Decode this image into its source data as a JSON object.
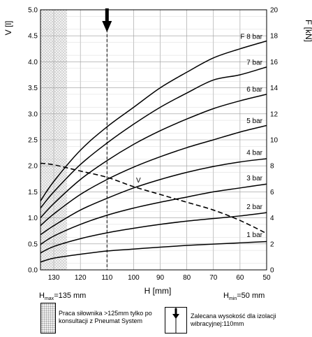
{
  "chart_data": {
    "type": "line",
    "xlabel": "H [mm]",
    "ylabel_left": "V [l]",
    "ylabel_right": "F [kN]",
    "x_reversed": true,
    "xlim": [
      50,
      135
    ],
    "ylim_left": [
      0,
      5.0
    ],
    "ylim_right": [
      0,
      20
    ],
    "x_ticks": [
      130,
      120,
      110,
      100,
      90,
      80,
      70,
      60,
      50
    ],
    "y_left_ticks": [
      "0.0",
      "0.5",
      "1.0",
      "1.5",
      "2.0",
      "2.5",
      "3.0",
      "3.5",
      "4.0",
      "4.5",
      "5.0"
    ],
    "y_right_ticks": [
      "0",
      "2",
      "4",
      "6",
      "8",
      "10",
      "12",
      "14",
      "16",
      "18",
      "20"
    ],
    "grid": true,
    "series": [
      {
        "name": "1 bar",
        "axis": "right",
        "x": [
          135,
          130,
          120,
          110,
          100,
          90,
          80,
          70,
          60,
          50
        ],
        "values": [
          0.6,
          0.9,
          1.2,
          1.45,
          1.6,
          1.75,
          1.88,
          1.98,
          2.08,
          2.18
        ]
      },
      {
        "name": "2 bar",
        "axis": "right",
        "x": [
          135,
          130,
          120,
          110,
          100,
          90,
          80,
          70,
          60,
          50
        ],
        "values": [
          1.3,
          1.8,
          2.4,
          2.85,
          3.2,
          3.5,
          3.75,
          3.95,
          4.15,
          4.4
        ]
      },
      {
        "name": "3 bar",
        "axis": "right",
        "x": [
          135,
          130,
          120,
          110,
          100,
          90,
          80,
          70,
          60,
          50
        ],
        "values": [
          1.95,
          2.6,
          3.5,
          4.2,
          4.75,
          5.2,
          5.6,
          6.0,
          6.3,
          6.6
        ]
      },
      {
        "name": "4 bar",
        "axis": "right",
        "x": [
          135,
          130,
          120,
          110,
          100,
          90,
          80,
          70,
          60,
          50
        ],
        "values": [
          2.7,
          3.4,
          4.6,
          5.5,
          6.3,
          6.95,
          7.5,
          7.95,
          8.3,
          8.55
        ]
      },
      {
        "name": "5 bar",
        "axis": "right",
        "x": [
          135,
          130,
          120,
          110,
          100,
          90,
          80,
          70,
          60,
          50
        ],
        "values": [
          3.4,
          4.3,
          5.8,
          6.95,
          7.9,
          8.7,
          9.4,
          10.0,
          10.6,
          11.1
        ]
      },
      {
        "name": "6 bar",
        "axis": "right",
        "x": [
          135,
          130,
          120,
          110,
          100,
          90,
          80,
          70,
          60,
          50
        ],
        "values": [
          4.0,
          5.1,
          6.95,
          8.4,
          9.65,
          10.7,
          11.6,
          12.4,
          13.0,
          13.5
        ]
      },
      {
        "name": "7 bar",
        "axis": "right",
        "x": [
          135,
          130,
          120,
          110,
          100,
          90,
          80,
          70,
          60,
          50
        ],
        "values": [
          4.75,
          6.0,
          8.1,
          9.75,
          11.2,
          12.5,
          13.6,
          14.6,
          15.0,
          15.6
        ]
      },
      {
        "name": "8 bar",
        "axis": "right",
        "x": [
          135,
          130,
          120,
          110,
          100,
          90,
          80,
          70,
          60,
          50
        ],
        "values": [
          5.3,
          6.8,
          9.2,
          11.0,
          12.5,
          14.0,
          15.2,
          16.3,
          17.0,
          17.6
        ]
      },
      {
        "name": "V",
        "axis": "left",
        "dashed": true,
        "x": [
          135,
          130,
          120,
          110,
          100,
          90,
          80,
          70,
          60,
          50
        ],
        "values": [
          2.05,
          2.02,
          1.9,
          1.78,
          1.6,
          1.45,
          1.3,
          1.15,
          0.95,
          0.7
        ]
      }
    ],
    "curve_labels": [
      "F 8 bar",
      "7 bar",
      "6 bar",
      "5 bar",
      "4 bar",
      "3 bar",
      "2 bar",
      "1 bar"
    ],
    "v_label": "V",
    "hatched_region": {
      "from": 135,
      "to": 125
    },
    "recommended_height": 110,
    "hmax_label": {
      "main": "H",
      "sub": "max",
      "rest": "=135 mm"
    },
    "hmin_label": {
      "main": "H",
      "sub": "min",
      "rest": "=50 mm"
    }
  },
  "legend": {
    "hatched_text": "Praca siłownika >125mm tylko po konsultacji z Pneumat System",
    "arrow_text": "Zalecana wysokość dla izolacji wibracyjnej:110mm"
  },
  "colors": {
    "line": "#000000",
    "grid": "#9a9a9a",
    "hatch": "#c8c8c8"
  }
}
